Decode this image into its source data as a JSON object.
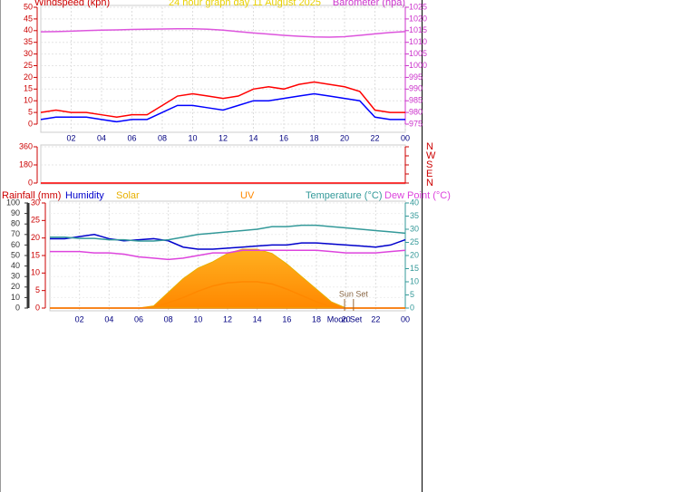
{
  "chart_data": [
    {
      "type": "line",
      "title": "24 hour graph day  11 August 2025",
      "ylabel": "Windspeed (kph)",
      "y2label": "Barometer (hpa)",
      "ycolor": "#cc0000",
      "y2color": "#cc33cc",
      "title_color": "#e8d000",
      "grid": true,
      "xlim": [
        0,
        24
      ],
      "xticks": [
        {
          "value": 2,
          "label": "02"
        },
        {
          "value": 4,
          "label": "04"
        },
        {
          "value": 6,
          "label": "06"
        },
        {
          "value": 8,
          "label": "08"
        },
        10,
        12,
        14,
        16,
        18,
        20,
        22,
        {
          "value": 24,
          "label": "00"
        }
      ],
      "ylim": [
        0,
        50
      ],
      "yticks": [
        0,
        5,
        10,
        15,
        20,
        25,
        30,
        35,
        40,
        45,
        50
      ],
      "y2lim": [
        975,
        1025
      ],
      "y2ticks": [
        975,
        980,
        985,
        990,
        995,
        1000,
        1005,
        1010,
        1015,
        1020,
        1025
      ],
      "x": [
        0,
        1,
        2,
        3,
        4,
        5,
        6,
        7,
        8,
        9,
        10,
        11,
        12,
        13,
        14,
        15,
        16,
        17,
        18,
        19,
        20,
        21,
        22,
        23,
        24
      ],
      "series": [
        {
          "color": "#ff0000",
          "values": [
            5,
            6,
            5,
            5,
            4,
            3,
            4,
            4,
            8,
            12,
            13,
            12,
            11,
            12,
            15,
            16,
            15,
            17,
            18,
            17,
            16,
            14,
            6,
            5,
            5
          ]
        },
        {
          "color": "#0000ff",
          "values": [
            2,
            3,
            3,
            3,
            2,
            1,
            2,
            2,
            5,
            8,
            8,
            7,
            6,
            8,
            10,
            10,
            11,
            12,
            13,
            12,
            11,
            10,
            3,
            2,
            2
          ]
        },
        {
          "color": "#dd55dd",
          "axis": "y2",
          "values": [
            1014.5,
            1014.6,
            1014.8,
            1015,
            1015.2,
            1015.3,
            1015.5,
            1015.6,
            1015.7,
            1015.8,
            1015.8,
            1015.6,
            1015.2,
            1014.6,
            1014,
            1013.5,
            1013,
            1012.6,
            1012.3,
            1012.2,
            1012.4,
            1013,
            1013.6,
            1014.2,
            1014.6
          ]
        }
      ]
    },
    {
      "type": "line",
      "ycolor": "#cc0000",
      "y2color": "#cc0000",
      "grid": true,
      "xlim": [
        0,
        24
      ],
      "ylim": [
        0,
        360
      ],
      "yticks": [
        0,
        180,
        360
      ],
      "y2lim": [
        0,
        360
      ],
      "y2ticks": [
        {
          "value": 0,
          "label": "N"
        },
        {
          "value": 90,
          "label": "E"
        },
        {
          "value": 180,
          "label": "S"
        },
        {
          "value": 270,
          "label": "W"
        },
        {
          "value": 360,
          "label": "N"
        }
      ],
      "x": [
        0,
        1,
        2,
        3,
        4,
        5,
        6,
        7,
        8,
        9,
        10,
        11,
        12,
        13,
        14,
        15,
        16,
        17,
        18,
        19,
        20,
        21,
        22,
        23,
        24
      ],
      "series": [
        {
          "color": "#ff0000",
          "values": [
            0,
            0,
            0,
            0,
            0,
            0,
            0,
            0,
            0,
            0,
            0,
            0,
            0,
            0,
            0,
            0,
            0,
            0,
            0,
            0,
            0,
            0,
            0,
            0,
            0
          ]
        }
      ]
    },
    {
      "type": "line",
      "ycolor": "#333333",
      "y2color": "#339999",
      "y3color": "#cc0000",
      "grid": true,
      "xlim": [
        0,
        24
      ],
      "xticks": [
        {
          "value": 2,
          "label": "02"
        },
        {
          "value": 4,
          "label": "04"
        },
        {
          "value": 6,
          "label": "06"
        },
        {
          "value": 8,
          "label": "08"
        },
        10,
        12,
        14,
        16,
        18,
        20,
        22,
        {
          "value": 24,
          "label": "00"
        }
      ],
      "ylim": [
        0,
        100
      ],
      "yticks": [
        0,
        10,
        20,
        30,
        40,
        50,
        60,
        70,
        80,
        90,
        100
      ],
      "y3lim": [
        0,
        30
      ],
      "y3ticks": [
        0,
        5,
        10,
        15,
        20,
        25,
        30
      ],
      "y2lim": [
        0,
        40
      ],
      "y2ticks": [
        0,
        5,
        10,
        15,
        20,
        25,
        30,
        35,
        40
      ],
      "x": [
        0,
        1,
        2,
        3,
        4,
        5,
        6,
        7,
        8,
        9,
        10,
        11,
        12,
        13,
        14,
        15,
        16,
        17,
        18,
        19,
        20,
        21,
        22,
        23,
        24
      ],
      "series": [
        {
          "name": "Rainfall (mm)",
          "color": "#cc0000",
          "axis": "y3",
          "values": [
            0,
            0,
            0,
            0,
            0,
            0,
            0,
            0,
            0,
            0,
            0,
            0,
            0,
            0,
            0,
            0,
            0,
            0,
            0,
            0,
            0,
            0,
            0,
            0,
            0
          ]
        },
        {
          "name": "Humidity",
          "color": "#0000cc",
          "values": [
            66,
            66,
            68,
            70,
            66,
            64,
            65,
            66,
            64,
            58,
            56,
            56,
            57,
            58,
            59,
            60,
            60,
            62,
            62,
            61,
            60,
            59,
            58,
            60,
            65
          ]
        },
        {
          "name": "Solar",
          "color": "#e8b000",
          "type": "area",
          "values": [
            0,
            0,
            0,
            0,
            0,
            0,
            0,
            2,
            15,
            28,
            38,
            44,
            52,
            56,
            56,
            52,
            42,
            30,
            18,
            6,
            0,
            0,
            0,
            0,
            0
          ]
        },
        {
          "name": "UV",
          "color": "#ff8800",
          "values": [
            0,
            0,
            0,
            0,
            0,
            0,
            0,
            1,
            5,
            10,
            16,
            21,
            24,
            25,
            25,
            23,
            18,
            12,
            6,
            1,
            0,
            0,
            0,
            0,
            0
          ]
        },
        {
          "name": "Temperature (°C)",
          "color": "#339999",
          "axis": "y2",
          "values": [
            27,
            27,
            26.5,
            26.5,
            26,
            26,
            25.5,
            25.5,
            26,
            27,
            28,
            28.5,
            29,
            29.5,
            30,
            31,
            31,
            31.5,
            31.5,
            31,
            30.5,
            30,
            29.5,
            29,
            28.5
          ]
        },
        {
          "name": "Dew Point (°C)",
          "color": "#dd44dd",
          "axis": "y2",
          "values": [
            21.5,
            21.5,
            21.5,
            21,
            21,
            20.5,
            19.5,
            19,
            18.5,
            19,
            20,
            21,
            21,
            22,
            22,
            22,
            22,
            22,
            22,
            21.5,
            21,
            21,
            21,
            21.5,
            22
          ]
        }
      ],
      "annotations": [
        {
          "text": "Sun Set",
          "x": 20.5
        },
        {
          "text": "Moon Set",
          "x": 19.9
        }
      ]
    }
  ]
}
